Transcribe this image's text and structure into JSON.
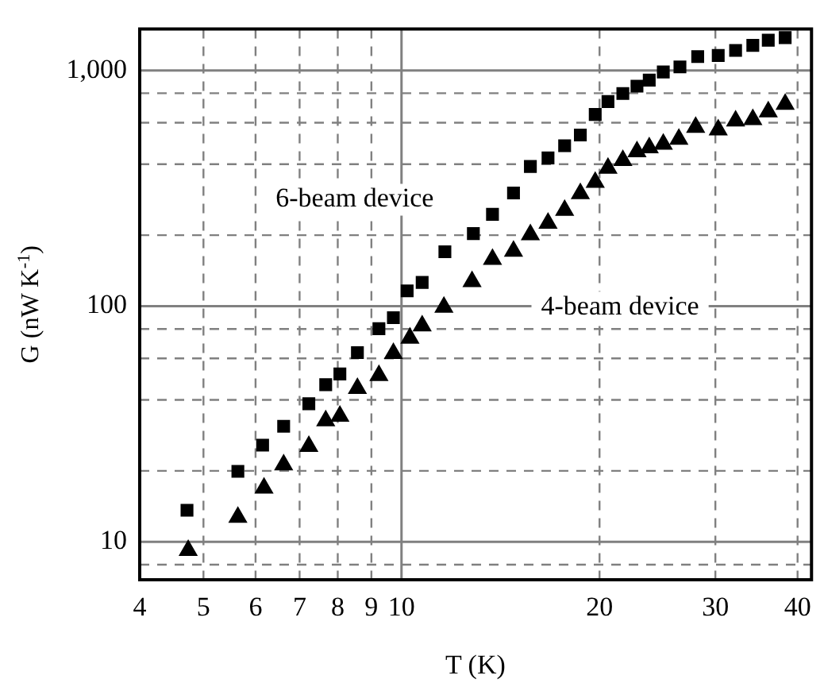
{
  "chart_data": {
    "type": "scatter",
    "xlabel": "T (K)",
    "ylabel": "G (nW K$^{-1}$)",
    "log": "xy",
    "grid": true,
    "xlim": [
      4,
      42
    ],
    "ylim": [
      6.9,
      1500
    ],
    "xticks": [
      4,
      5,
      6,
      7,
      8,
      9,
      10,
      20,
      30,
      40
    ],
    "yticks": [
      {
        "value": 8,
        "label": null
      },
      {
        "value": 10,
        "label": "10"
      },
      {
        "value": 20,
        "label": null
      },
      {
        "value": 40,
        "label": null
      },
      {
        "value": 60,
        "label": null
      },
      {
        "value": 80,
        "label": null
      },
      {
        "value": 100,
        "label": "100"
      },
      {
        "value": 200,
        "label": null
      },
      {
        "value": 400,
        "label": null
      },
      {
        "value": 600,
        "label": null
      },
      {
        "value": 800,
        "label": null
      },
      {
        "value": 1000,
        "label": "1,000"
      }
    ],
    "series": [
      {
        "color": "#000000",
        "marker": "square",
        "x": [
          4.72,
          5.64,
          6.15,
          6.62,
          7.23,
          7.67,
          8.06,
          8.57,
          9.24,
          9.72,
          10.2,
          10.75,
          11.64,
          12.86,
          13.75,
          14.8,
          15.7,
          16.7,
          17.7,
          18.7,
          19.7,
          20.6,
          21.7,
          22.8,
          23.8,
          25.0,
          26.5,
          28.2,
          30.3,
          32.2,
          34.2,
          36.1,
          38.3
        ],
        "values": [
          13.6,
          19.9,
          25.7,
          30.9,
          38.5,
          46.4,
          51.5,
          63.5,
          80.2,
          89.3,
          116,
          126,
          170,
          203,
          245,
          302,
          391,
          425,
          479,
          532,
          650,
          738,
          798,
          857,
          910,
          985,
          1035,
          1145,
          1157,
          1216,
          1277,
          1343,
          1378
        ]
      },
      {
        "color": "#000000",
        "marker": "triangle",
        "x": [
          4.74,
          5.64,
          6.18,
          6.62,
          7.23,
          7.67,
          8.06,
          8.57,
          9.24,
          9.72,
          10.3,
          10.75,
          11.6,
          12.8,
          13.75,
          14.8,
          15.7,
          16.7,
          17.7,
          18.7,
          19.7,
          20.6,
          21.7,
          22.8,
          23.8,
          25.0,
          26.4,
          28.0,
          30.3,
          32.2,
          34.2,
          36.1,
          38.3
        ],
        "values": [
          9.2,
          12.7,
          16.9,
          21.2,
          25.4,
          32.6,
          34.1,
          44.8,
          50.8,
          63.0,
          73.2,
          82.5,
          98.9,
          127,
          158,
          171,
          201,
          225,
          255,
          300,
          335,
          385,
          415,
          452,
          470,
          487,
          511,
          574,
          560,
          610,
          619,
          667,
          719
        ]
      }
    ],
    "annotations": [
      "6-beam device",
      "4-beam device"
    ]
  }
}
